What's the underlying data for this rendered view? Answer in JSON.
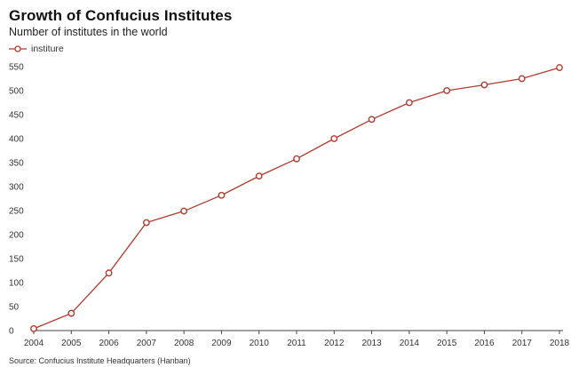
{
  "title": "Growth of Confucius Institutes",
  "subtitle": "Number of institutes in the world",
  "source": "Source: Confucius Institute Headquarters (Hanban)",
  "colors": {
    "series": "#b03a2e",
    "axis": "#444444"
  },
  "chart_data": {
    "type": "line",
    "title": "Growth of Confucius Institutes",
    "subtitle": "Number of institutes in the world",
    "xlabel": "",
    "ylabel": "",
    "x": [
      "2004",
      "2005",
      "2006",
      "2007",
      "2008",
      "2009",
      "2010",
      "2011",
      "2012",
      "2013",
      "2014",
      "2015",
      "2016",
      "2017",
      "2018"
    ],
    "series": [
      {
        "name": "institure",
        "values": [
          4,
          36,
          120,
          225,
          249,
          282,
          322,
          358,
          400,
          440,
          475,
          500,
          512,
          525,
          548
        ]
      }
    ],
    "ylim": [
      0,
      550
    ],
    "yticks": [
      0,
      50,
      100,
      150,
      200,
      250,
      300,
      350,
      400,
      450,
      500,
      550
    ],
    "grid": false,
    "legend": "top-left",
    "marker": "hollow-circle"
  }
}
